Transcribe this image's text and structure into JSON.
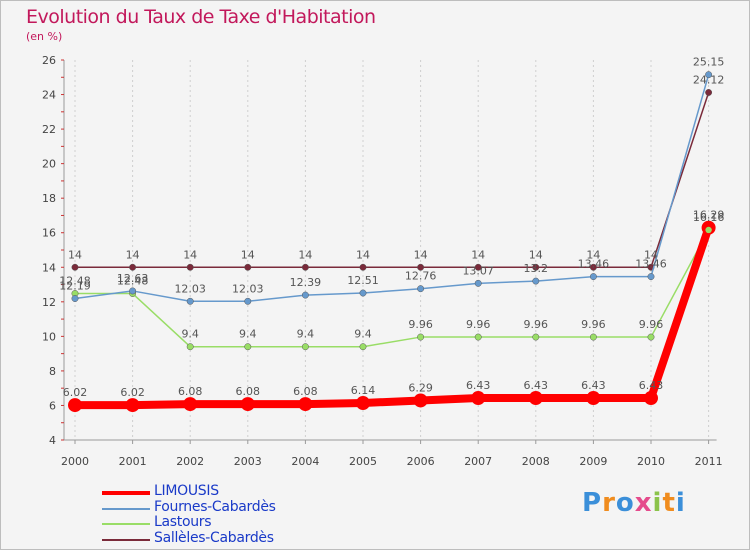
{
  "header": {
    "title": "Evolution du Taux de Taxe d'Habitation",
    "subtitle": "(en %)"
  },
  "brand": {
    "letters": [
      "P",
      "r",
      "o",
      "x",
      "i",
      "t",
      "i"
    ],
    "colors": [
      "#3b8fd9",
      "#f08c1e",
      "#3b8fd9",
      "#e54b8c",
      "#8bc34a",
      "#f08c1e",
      "#3b8fd9"
    ]
  },
  "chart_data": {
    "type": "line",
    "title": "Evolution du Taux de Taxe d'Habitation",
    "ylabel": "(en %)",
    "xlabel": "",
    "categories": [
      "2000",
      "2001",
      "2002",
      "2003",
      "2004",
      "2005",
      "2006",
      "2007",
      "2008",
      "2009",
      "2010",
      "2011"
    ],
    "ylim": [
      4,
      26
    ],
    "yticks": [
      4,
      6,
      8,
      10,
      12,
      14,
      16,
      18,
      20,
      22,
      24,
      26
    ],
    "series": [
      {
        "name": "LIMOUSIS",
        "color": "#ff0000",
        "values": [
          6.02,
          6.02,
          6.08,
          6.08,
          6.08,
          6.14,
          6.29,
          6.43,
          6.43,
          6.43,
          6.43,
          16.29
        ],
        "labels": [
          "6.02",
          "6.02",
          "6.08",
          "6.08",
          "6.08",
          "6.14",
          "6.29",
          "6.43",
          "6.43",
          "6.43",
          "6.43",
          "16.29"
        ]
      },
      {
        "name": "Fournes-Cabardès",
        "color": "#6699cc",
        "values": [
          12.19,
          12.63,
          12.03,
          12.03,
          12.39,
          12.51,
          12.76,
          13.07,
          13.2,
          13.46,
          13.46,
          25.15
        ],
        "labels": [
          "12.19",
          "12.63",
          "12.03",
          "12.03",
          "12.39",
          "12.51",
          "12.76",
          "13.07",
          "13.2",
          "13.46",
          "13.46",
          "25.15"
        ]
      },
      {
        "name": "Lastours",
        "color": "#99dd66",
        "values": [
          12.48,
          12.48,
          9.4,
          9.4,
          9.4,
          9.4,
          9.96,
          9.96,
          9.96,
          9.96,
          9.96,
          16.16
        ],
        "labels": [
          "12.48",
          "12.48",
          "9.4",
          "9.4",
          "9.4",
          "9.4",
          "9.96",
          "9.96",
          "9.96",
          "9.96",
          "9.96",
          "16.16"
        ]
      },
      {
        "name": "Sallèles-Cabardès",
        "color": "#7a2a3a",
        "values": [
          14,
          14,
          14,
          14,
          14,
          14,
          14,
          14,
          14,
          14,
          14,
          24.12
        ],
        "labels": [
          "14",
          "14",
          "14",
          "14",
          "14",
          "14",
          "14",
          "14",
          "14",
          "14",
          "14",
          "24.12"
        ]
      }
    ],
    "legend_position": "bottom-left"
  }
}
